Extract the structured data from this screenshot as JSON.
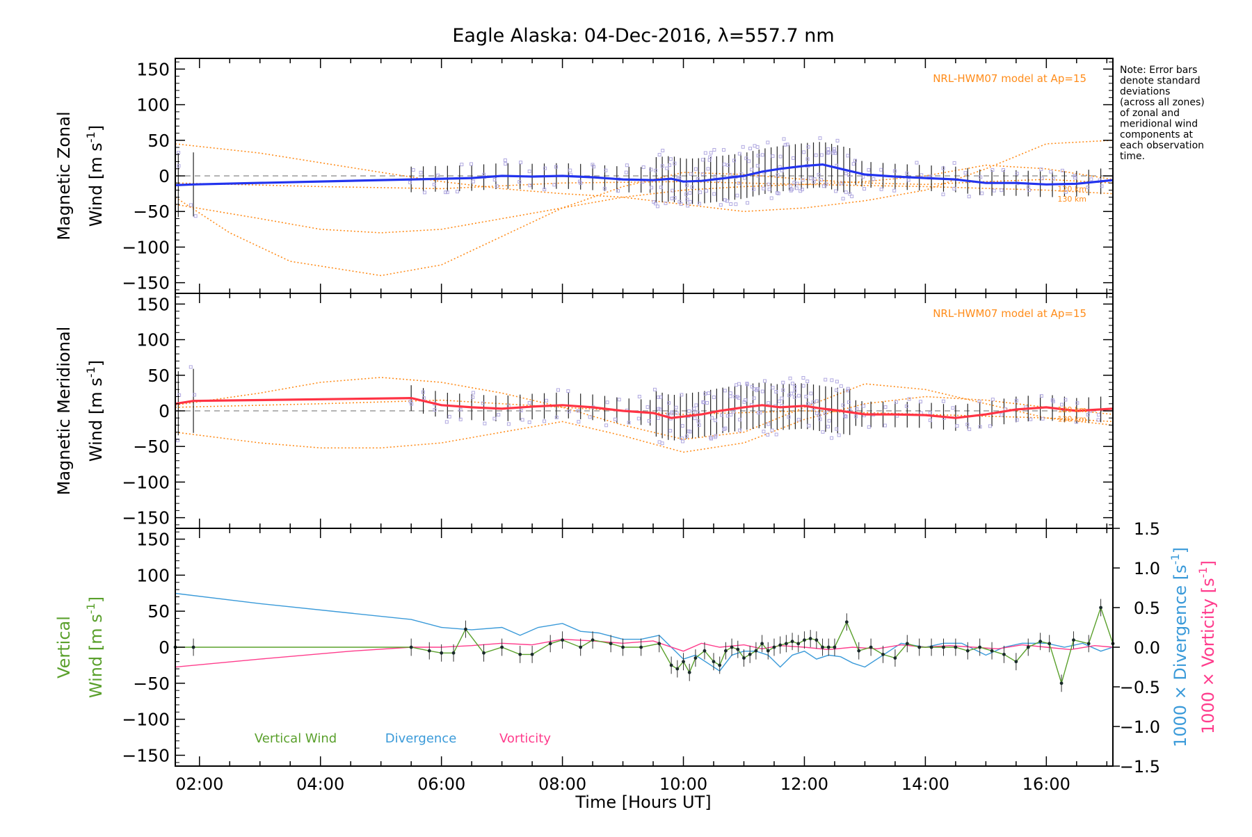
{
  "figure": {
    "title": "Eagle Alaska: 04-Dec-2016, λ=557.7 nm",
    "note_lines": [
      "Note: Error bars",
      "denote standard",
      "deviations",
      "(across all zones)",
      "of zonal and",
      "meridional wind",
      "components at",
      "each observation",
      "time."
    ],
    "xlabel": "Time [Hours UT]",
    "colors": {
      "zonal": "#2233ee",
      "meridional": "#ff3344",
      "model": "#ff8c1a",
      "scatter": "#b0a8e0",
      "vertical": "#5aa02c",
      "divergence": "#3a9ad9",
      "vorticity": "#ff3c8c",
      "axis": "#000000",
      "zero_line": "#888888"
    }
  },
  "chart_data": [
    {
      "type": "line",
      "panel": "zonal",
      "ylabel_line1": "Magnetic Zonal",
      "ylabel_line2": "Wind [m s",
      "ylabel_sup": "-1",
      "ylabel_close": "]",
      "ylim": [
        -165,
        165
      ],
      "yticks": [
        -150,
        -100,
        -50,
        0,
        50,
        100,
        150
      ],
      "ytick_labels": [
        "−150",
        "−100",
        "−50",
        "0",
        "50",
        "100",
        "150"
      ],
      "xlim": [
        1.6,
        17.1
      ],
      "xticks": [
        2,
        4,
        6,
        8,
        10,
        12,
        14,
        16
      ],
      "model_label": "NRL-HWM07 model at Ap=15",
      "model_heights": [
        "120 km",
        "130 km"
      ],
      "series": [
        {
          "role": "mean",
          "x": [
            1.6,
            1.9,
            5.5,
            6.0,
            6.5,
            7.0,
            7.5,
            8.0,
            8.5,
            9.0,
            9.5,
            9.8,
            10.0,
            10.3,
            10.6,
            11.0,
            11.3,
            11.6,
            12.0,
            12.3,
            12.6,
            13.0,
            13.5,
            14.0,
            14.5,
            15.0,
            15.5,
            16.0,
            16.5,
            17.1
          ],
          "y": [
            -13,
            -12,
            -5,
            -4,
            -3,
            0,
            -1,
            0,
            -2,
            -5,
            -6,
            -4,
            -8,
            -7,
            -4,
            0,
            6,
            10,
            14,
            16,
            10,
            2,
            -1,
            -3,
            -5,
            -10,
            -10,
            -12,
            -11,
            -6
          ]
        }
      ],
      "model_curves": [
        {
          "x": [
            1.6,
            3.0,
            5.0,
            6.0,
            7.0,
            8.0,
            9.0,
            10.0,
            11.0,
            12.0,
            13.0,
            14.0,
            15.0,
            16.0,
            17.1
          ],
          "y": [
            45,
            32,
            5,
            -8,
            -18,
            -25,
            -30,
            -40,
            -50,
            -45,
            -35,
            -20,
            10,
            45,
            50
          ]
        },
        {
          "x": [
            1.6,
            2.5,
            3.5,
            5.0,
            6.0,
            7.0,
            8.0,
            9.0,
            10.0,
            11.0,
            12.0,
            13.0,
            14.0,
            15.0,
            16.0,
            17.1
          ],
          "y": [
            -30,
            -80,
            -120,
            -140,
            -125,
            -85,
            -45,
            -15,
            5,
            2,
            -5,
            -10,
            -12,
            -8,
            -5,
            -10
          ]
        },
        {
          "x": [
            1.6,
            3.0,
            4.0,
            5.0,
            6.0,
            7.0,
            8.0,
            9.0,
            10.0,
            11.0,
            12.0,
            13.0,
            14.0,
            15.0,
            16.0,
            17.1
          ],
          "y": [
            -40,
            -60,
            -75,
            -80,
            -75,
            -60,
            -45,
            -30,
            -20,
            -15,
            -12,
            -8,
            0,
            15,
            10,
            -5
          ]
        },
        {
          "x": [
            1.6,
            4.0,
            6.0,
            8.0,
            10.0,
            12.0,
            14.0,
            16.0,
            17.1
          ],
          "y": [
            -10,
            -15,
            -18,
            -10,
            -8,
            -12,
            -15,
            -20,
            -25
          ]
        }
      ]
    },
    {
      "type": "line",
      "panel": "meridional",
      "ylabel_line1": "Magnetic Meridional",
      "ylabel_line2": "Wind [m s",
      "ylabel_sup": "-1",
      "ylabel_close": "]",
      "ylim": [
        -165,
        165
      ],
      "yticks": [
        -150,
        -100,
        -50,
        0,
        50,
        100,
        150
      ],
      "ytick_labels": [
        "−150",
        "−100",
        "−50",
        "0",
        "50",
        "100",
        "150"
      ],
      "xlim": [
        1.6,
        17.1
      ],
      "xticks": [
        2,
        4,
        6,
        8,
        10,
        12,
        14,
        16
      ],
      "model_label": "NRL-HWM07 model at Ap=15",
      "model_heights": [
        "120 km",
        "130 km"
      ],
      "series": [
        {
          "role": "mean",
          "x": [
            1.6,
            1.9,
            5.5,
            6.0,
            6.5,
            7.0,
            7.5,
            8.0,
            8.5,
            9.0,
            9.5,
            9.8,
            10.0,
            10.3,
            10.6,
            11.0,
            11.3,
            11.6,
            12.0,
            12.3,
            12.6,
            13.0,
            13.5,
            14.0,
            14.5,
            15.0,
            15.5,
            16.0,
            16.5,
            17.1
          ],
          "y": [
            10,
            14,
            18,
            8,
            5,
            3,
            6,
            8,
            5,
            0,
            -3,
            -10,
            -8,
            -5,
            0,
            5,
            8,
            5,
            7,
            3,
            0,
            -5,
            -5,
            -6,
            -10,
            -5,
            2,
            5,
            0,
            3
          ]
        }
      ],
      "model_curves": [
        {
          "x": [
            1.6,
            3.0,
            4.0,
            5.0,
            6.0,
            7.0,
            8.0,
            9.0,
            10.0,
            11.0,
            12.0,
            13.0,
            14.0,
            15.0,
            16.0,
            17.1
          ],
          "y": [
            8,
            25,
            40,
            47,
            40,
            25,
            5,
            -20,
            -40,
            -30,
            5,
            38,
            30,
            10,
            -10,
            -20
          ]
        },
        {
          "x": [
            1.6,
            3.0,
            4.0,
            5.0,
            6.0,
            7.0,
            8.0,
            9.0,
            10.0,
            11.0,
            12.0,
            13.0,
            14.0,
            15.0,
            16.0,
            17.1
          ],
          "y": [
            -30,
            -45,
            -52,
            -52,
            -45,
            -30,
            -15,
            -35,
            -58,
            -45,
            -12,
            10,
            20,
            15,
            5,
            -5
          ]
        },
        {
          "x": [
            1.6,
            4.0,
            6.0,
            8.0,
            10.0,
            12.0,
            14.0,
            16.0,
            17.1
          ],
          "y": [
            5,
            10,
            15,
            5,
            -5,
            0,
            -5,
            -10,
            -15
          ]
        }
      ]
    },
    {
      "type": "line",
      "panel": "vertical",
      "ylabel_line1": "Vertical",
      "ylabel_line2": "Wind [m s",
      "ylabel_sup": "-1",
      "ylabel_close": "]",
      "ylim": [
        -165,
        165
      ],
      "yticks": [
        -150,
        -100,
        -50,
        0,
        50,
        100,
        150
      ],
      "ytick_labels": [
        "−150",
        "−100",
        "−50",
        "0",
        "50",
        "100",
        "150"
      ],
      "right_axis": {
        "ylim": [
          -1.5,
          1.5
        ],
        "yticks": [
          -1.5,
          -1.0,
          -0.5,
          0.0,
          0.5,
          1.0,
          1.5
        ],
        "ytick_labels": [
          "−1.5",
          "−1.0",
          "−0.5",
          "0.0",
          "0.5",
          "1.0",
          "1.5"
        ],
        "label_divergence": "1000 × Divergence [s",
        "label_vorticity": "1000 × Vorticity [s",
        "label_sup": "-1",
        "label_close": "]"
      },
      "xlim": [
        1.6,
        17.1
      ],
      "xticks": [
        2,
        4,
        6,
        8,
        10,
        12,
        14,
        16
      ],
      "xtick_labels": [
        "02:00",
        "04:00",
        "06:00",
        "08:00",
        "10:00",
        "12:00",
        "14:00",
        "16:00"
      ],
      "legend": [
        "Vertical Wind",
        "Divergence",
        "Vorticity"
      ],
      "series": [
        {
          "name": "Vertical Wind",
          "x": [
            1.6,
            1.9,
            5.5,
            5.8,
            6.0,
            6.2,
            6.4,
            6.7,
            7.0,
            7.3,
            7.5,
            7.8,
            8.0,
            8.3,
            8.5,
            8.8,
            9.0,
            9.3,
            9.6,
            9.8,
            9.9,
            10.0,
            10.1,
            10.2,
            10.35,
            10.5,
            10.6,
            10.7,
            10.8,
            10.9,
            11.0,
            11.1,
            11.2,
            11.3,
            11.4,
            11.5,
            11.6,
            11.7,
            11.8,
            11.9,
            12.0,
            12.1,
            12.2,
            12.3,
            12.4,
            12.5,
            12.7,
            12.9,
            13.1,
            13.3,
            13.5,
            13.7,
            13.9,
            14.1,
            14.3,
            14.5,
            14.7,
            14.9,
            15.1,
            15.3,
            15.5,
            15.7,
            15.9,
            16.05,
            16.25,
            16.45,
            16.7,
            16.9,
            17.1
          ],
          "y": [
            0,
            0,
            0,
            -5,
            -8,
            -8,
            25,
            -8,
            0,
            -10,
            -10,
            5,
            10,
            0,
            10,
            5,
            0,
            0,
            5,
            -25,
            -30,
            -20,
            -35,
            -15,
            -5,
            -20,
            -25,
            -5,
            0,
            -3,
            -15,
            -10,
            -5,
            5,
            -5,
            0,
            3,
            5,
            8,
            5,
            10,
            12,
            10,
            0,
            0,
            0,
            35,
            -5,
            0,
            -10,
            -15,
            5,
            0,
            0,
            0,
            0,
            -5,
            0,
            -5,
            -10,
            -20,
            0,
            8,
            5,
            -50,
            10,
            5,
            55,
            5
          ]
        },
        {
          "name": "Divergence",
          "x": [
            1.6,
            3.0,
            4.5,
            5.5,
            6.0,
            6.5,
            7.0,
            7.3,
            7.6,
            8.0,
            8.3,
            8.6,
            9.0,
            9.3,
            9.6,
            9.8,
            10.0,
            10.2,
            10.4,
            10.6,
            10.8,
            11.0,
            11.2,
            11.4,
            11.6,
            11.8,
            12.0,
            12.2,
            12.4,
            12.6,
            12.8,
            13.0,
            13.3,
            13.6,
            14.0,
            14.3,
            14.6,
            15.0,
            15.3,
            15.6,
            16.0,
            16.3,
            16.6,
            16.9,
            17.1
          ],
          "y": [
            0.68,
            0.55,
            0.43,
            0.35,
            0.25,
            0.22,
            0.25,
            0.15,
            0.25,
            0.3,
            0.2,
            0.18,
            0.1,
            0.1,
            0.15,
            0.0,
            -0.15,
            -0.1,
            -0.2,
            -0.3,
            -0.1,
            -0.05,
            -0.05,
            -0.1,
            -0.25,
            -0.1,
            -0.05,
            -0.15,
            -0.1,
            -0.12,
            -0.2,
            -0.25,
            -0.1,
            0.05,
            0.0,
            0.05,
            0.05,
            -0.1,
            0.0,
            0.05,
            0.05,
            0.0,
            0.05,
            -0.05,
            0.0
          ]
        },
        {
          "name": "Vorticity",
          "x": [
            1.6,
            3.0,
            4.5,
            5.5,
            6.0,
            6.5,
            7.0,
            7.5,
            8.0,
            8.5,
            9.0,
            9.5,
            10.0,
            10.3,
            10.6,
            11.0,
            11.3,
            11.6,
            12.0,
            12.4,
            12.8,
            13.2,
            13.6,
            14.0,
            14.4,
            14.8,
            15.2,
            15.6,
            16.0,
            16.4,
            16.8,
            17.1
          ],
          "y": [
            -0.25,
            -0.15,
            -0.05,
            0.0,
            0.0,
            0.02,
            0.05,
            0.03,
            0.1,
            0.08,
            0.05,
            0.08,
            -0.05,
            0.05,
            0.0,
            0.03,
            -0.02,
            0.02,
            0.0,
            -0.03,
            0.0,
            -0.02,
            0.03,
            0.0,
            0.02,
            0.0,
            -0.02,
            0.03,
            0.0,
            -0.03,
            0.02,
            0.0
          ]
        }
      ]
    }
  ]
}
